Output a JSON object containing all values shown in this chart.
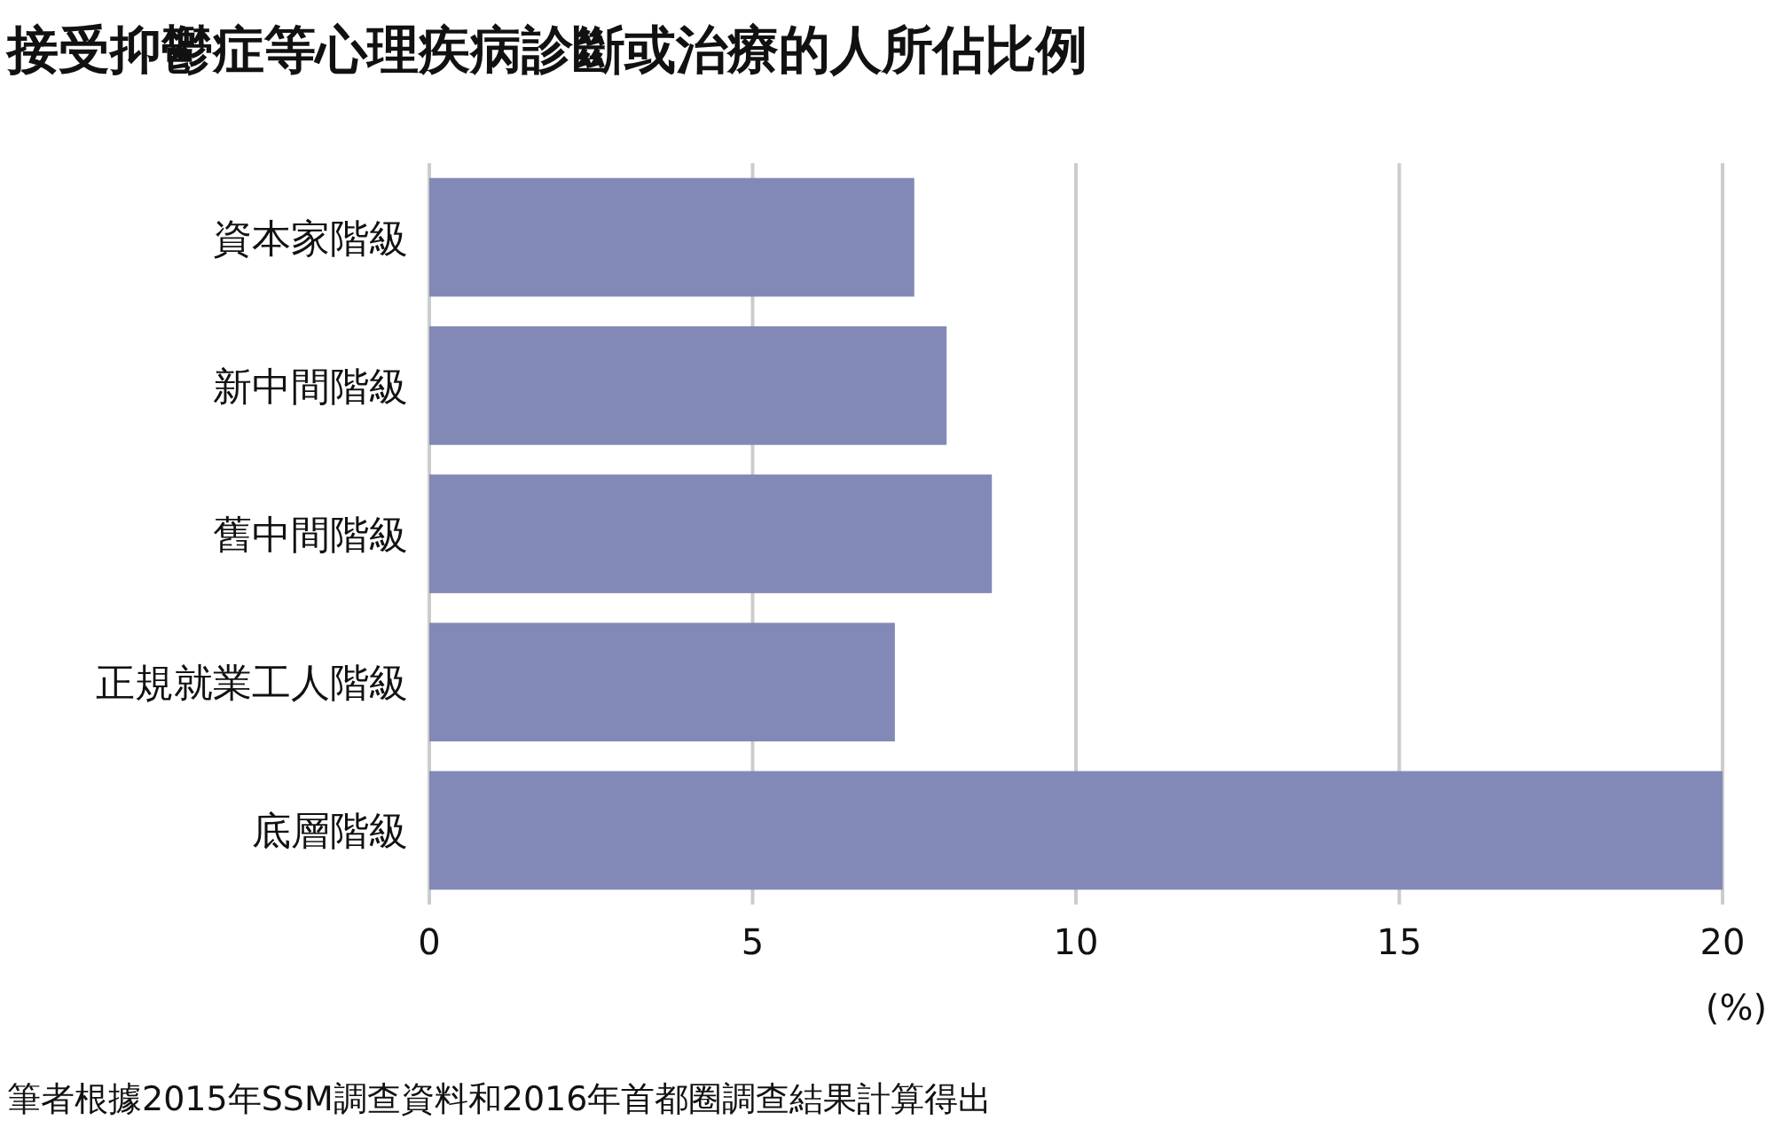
{
  "chart_data": {
    "type": "bar",
    "orientation": "horizontal",
    "title": "接受抑鬱症等心理疾病診斷或治療的人所佔比例",
    "categories": [
      "資本家階級",
      "新中間階級",
      "舊中間階級",
      "正規就業工人階級",
      "底層階級"
    ],
    "values": [
      7.5,
      8.0,
      8.7,
      7.2,
      20.0
    ],
    "color": "#8389b6",
    "xlim": [
      0,
      20
    ],
    "xticks": [
      0,
      5,
      10,
      15,
      20
    ],
    "xlabel": "(%)",
    "grid": "x",
    "annotations": [
      "筆者根據2015年SSM調查資料和2016年首都圈調查結果計算得出"
    ]
  }
}
